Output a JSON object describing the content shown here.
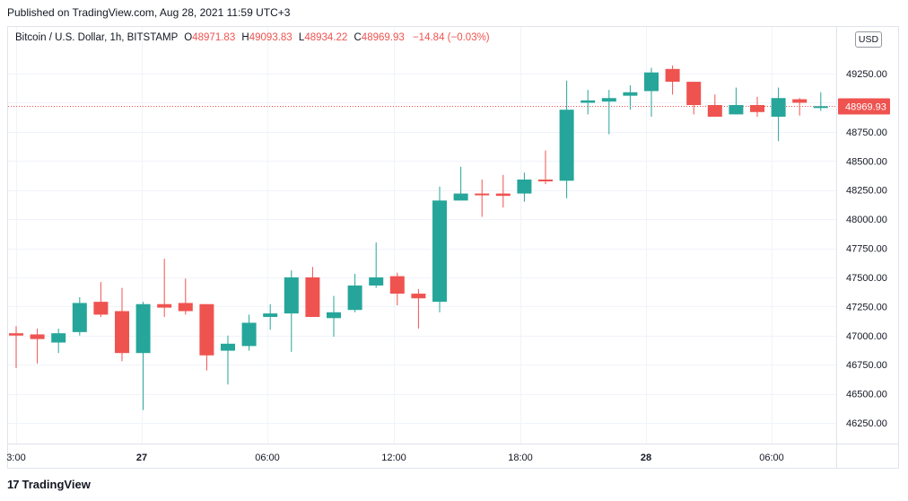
{
  "header": {
    "published": "Published on TradingView.com, Aug 28, 2021 11:59 UTC+3"
  },
  "legend": {
    "symbol": "Bitcoin / U.S. Dollar, 1h, BITSTAMP",
    "o_label": "O",
    "o_value": "48971.83",
    "h_label": "H",
    "h_value": "49093.83",
    "l_label": "L",
    "l_value": "48934.22",
    "c_label": "C",
    "c_value": "48969.93",
    "change": "−14.84 (−0.03%)"
  },
  "currency_button": "USD",
  "footer": {
    "brand": "TradingView",
    "logo_glyph": "17"
  },
  "colors": {
    "up": "#26a69a",
    "down": "#ef5350",
    "grid": "#f0f3fa",
    "price_line": "#ef5350"
  },
  "chart_data": {
    "type": "candlestick",
    "x_labels": [
      "3:00",
      "27",
      "06:00",
      "12:00",
      "18:00",
      "28",
      "06:00"
    ],
    "y_ticks": [
      49250,
      49000,
      48750,
      48500,
      48250,
      48000,
      47750,
      47500,
      47250,
      47000,
      46750,
      46500,
      46250
    ],
    "ylim": [
      46150,
      49430
    ],
    "current_price": 48969.93,
    "current_price_label": "48969.93",
    "candles": [
      {
        "o": 47020,
        "h": 47080,
        "l": 46720,
        "c": 47000
      },
      {
        "o": 47010,
        "h": 47060,
        "l": 46760,
        "c": 46970
      },
      {
        "o": 46940,
        "h": 47060,
        "l": 46850,
        "c": 47020
      },
      {
        "o": 47030,
        "h": 47330,
        "l": 47000,
        "c": 47280
      },
      {
        "o": 47290,
        "h": 47460,
        "l": 47160,
        "c": 47180
      },
      {
        "o": 47210,
        "h": 47410,
        "l": 46780,
        "c": 46850
      },
      {
        "o": 46850,
        "h": 47290,
        "l": 46360,
        "c": 47270
      },
      {
        "o": 47270,
        "h": 47660,
        "l": 47160,
        "c": 47240
      },
      {
        "o": 47280,
        "h": 47490,
        "l": 47180,
        "c": 47210
      },
      {
        "o": 47270,
        "h": 47270,
        "l": 46700,
        "c": 46830
      },
      {
        "o": 46870,
        "h": 47000,
        "l": 46580,
        "c": 46930
      },
      {
        "o": 46910,
        "h": 47180,
        "l": 46870,
        "c": 47110
      },
      {
        "o": 47160,
        "h": 47270,
        "l": 47050,
        "c": 47190
      },
      {
        "o": 47190,
        "h": 47560,
        "l": 46860,
        "c": 47500
      },
      {
        "o": 47500,
        "h": 47590,
        "l": 47160,
        "c": 47160
      },
      {
        "o": 47150,
        "h": 47340,
        "l": 46990,
        "c": 47200
      },
      {
        "o": 47220,
        "h": 47530,
        "l": 47200,
        "c": 47430
      },
      {
        "o": 47430,
        "h": 47800,
        "l": 47410,
        "c": 47500
      },
      {
        "o": 47510,
        "h": 47540,
        "l": 47260,
        "c": 47360
      },
      {
        "o": 47360,
        "h": 47400,
        "l": 47060,
        "c": 47320
      },
      {
        "o": 47290,
        "h": 48280,
        "l": 47200,
        "c": 48160
      },
      {
        "o": 48160,
        "h": 48450,
        "l": 48160,
        "c": 48220
      },
      {
        "o": 48220,
        "h": 48340,
        "l": 48020,
        "c": 48210
      },
      {
        "o": 48220,
        "h": 48380,
        "l": 48100,
        "c": 48200
      },
      {
        "o": 48220,
        "h": 48400,
        "l": 48150,
        "c": 48340
      },
      {
        "o": 48340,
        "h": 48590,
        "l": 48300,
        "c": 48330
      },
      {
        "o": 48330,
        "h": 49190,
        "l": 48180,
        "c": 48940
      },
      {
        "o": 49000,
        "h": 49110,
        "l": 48900,
        "c": 49020
      },
      {
        "o": 49010,
        "h": 49110,
        "l": 48730,
        "c": 49040
      },
      {
        "o": 49060,
        "h": 49150,
        "l": 48940,
        "c": 49090
      },
      {
        "o": 49100,
        "h": 49300,
        "l": 48880,
        "c": 49260
      },
      {
        "o": 49290,
        "h": 49320,
        "l": 49070,
        "c": 49180
      },
      {
        "o": 49180,
        "h": 49180,
        "l": 48900,
        "c": 48980
      },
      {
        "o": 48980,
        "h": 49070,
        "l": 48880,
        "c": 48880
      },
      {
        "o": 48900,
        "h": 49130,
        "l": 48900,
        "c": 48980
      },
      {
        "o": 48980,
        "h": 49050,
        "l": 48880,
        "c": 48920
      },
      {
        "o": 48880,
        "h": 49130,
        "l": 48670,
        "c": 49040
      },
      {
        "o": 49030,
        "h": 49040,
        "l": 48890,
        "c": 49000
      },
      {
        "o": 48970,
        "h": 49090,
        "l": 48930,
        "c": 48970
      }
    ]
  }
}
